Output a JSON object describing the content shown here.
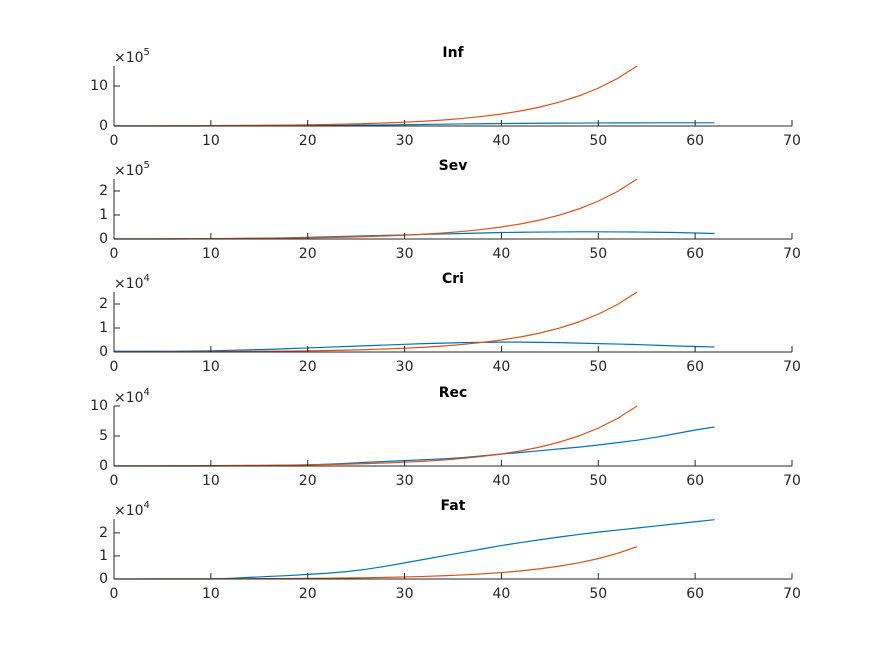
{
  "chart_data": [
    {
      "type": "line",
      "title": "Inf",
      "y_multiplier": "×10",
      "y_exponent": "5",
      "x": [
        0,
        2,
        4,
        6,
        8,
        10,
        12,
        14,
        16,
        18,
        20,
        22,
        24,
        26,
        28,
        30,
        32,
        34,
        36,
        38,
        40,
        42,
        44,
        46,
        48,
        50,
        52,
        54,
        56,
        58,
        60,
        62
      ],
      "series": [
        {
          "color": "#0072BD",
          "values": [
            0,
            0,
            0,
            0,
            0,
            1000,
            2000,
            3000,
            5000,
            7000,
            10000,
            13000,
            17000,
            22000,
            27000,
            33000,
            39000,
            45000,
            51000,
            56000,
            61000,
            65000,
            69000,
            72000,
            74000,
            76000,
            78000,
            79000,
            80000,
            80000,
            80000,
            80000
          ]
        },
        {
          "color": "#D95319",
          "values": [
            3000,
            3750,
            4800,
            6000,
            7500,
            9450,
            12000,
            15000,
            19050,
            23850,
            30000,
            37800,
            47550,
            60000,
            75450,
            94950,
            119400,
            150450,
            189000,
            238500,
            300000,
            378000,
            475500,
            598500,
            753000,
            946500,
            1191000,
            1500000,
            null,
            null,
            null,
            null
          ]
        }
      ],
      "xlim": [
        0,
        70
      ],
      "xticks": [
        0,
        10,
        20,
        30,
        40,
        50,
        60,
        70
      ],
      "ylim": [
        0,
        1500000
      ],
      "yticks": [
        0,
        {
          "value": 1000000,
          "label": "10"
        }
      ]
    },
    {
      "type": "line",
      "title": "Sev",
      "y_multiplier": "×10",
      "y_exponent": "5",
      "x": [
        0,
        2,
        4,
        6,
        8,
        10,
        12,
        14,
        16,
        18,
        20,
        22,
        24,
        26,
        28,
        30,
        32,
        34,
        36,
        38,
        40,
        42,
        44,
        46,
        48,
        50,
        52,
        54,
        56,
        58,
        60,
        62
      ],
      "series": [
        {
          "color": "#0072BD",
          "values": [
            0,
            0,
            0,
            0,
            500,
            1000,
            1500,
            2500,
            3500,
            5000,
            7000,
            9000,
            11000,
            13000,
            15000,
            17000,
            19000,
            21000,
            23000,
            25000,
            27000,
            28000,
            29000,
            29500,
            30000,
            30000,
            29500,
            29000,
            28000,
            27000,
            25000,
            23000
          ]
        },
        {
          "color": "#D95319",
          "values": [
            500,
            625,
            800,
            1000,
            1250,
            1575,
            2000,
            2500,
            3175,
            3975,
            5000,
            6300,
            7925,
            10000,
            12575,
            15825,
            19900,
            25075,
            31500,
            39750,
            50000,
            63000,
            79250,
            99750,
            125500,
            157750,
            198500,
            250000,
            null,
            null,
            null,
            null
          ]
        }
      ],
      "xlim": [
        0,
        70
      ],
      "xticks": [
        0,
        10,
        20,
        30,
        40,
        50,
        60,
        70
      ],
      "ylim": [
        0,
        250000
      ],
      "yticks": [
        0,
        {
          "value": 100000,
          "label": "1"
        },
        {
          "value": 200000,
          "label": "2"
        }
      ]
    },
    {
      "type": "line",
      "title": "Cri",
      "y_multiplier": "×10",
      "y_exponent": "4",
      "x": [
        0,
        2,
        4,
        6,
        8,
        10,
        12,
        14,
        16,
        18,
        20,
        22,
        24,
        26,
        28,
        30,
        32,
        34,
        36,
        38,
        40,
        42,
        44,
        46,
        48,
        50,
        52,
        54,
        56,
        58,
        60,
        62
      ],
      "series": [
        {
          "color": "#0072BD",
          "values": [
            300,
            300,
            300,
            300,
            400,
            500,
            700,
            900,
            1100,
            1400,
            1700,
            2000,
            2300,
            2600,
            2900,
            3200,
            3500,
            3700,
            3900,
            4000,
            4100,
            4100,
            4000,
            3900,
            3700,
            3500,
            3300,
            3100,
            2800,
            2500,
            2300,
            2100
          ]
        },
        {
          "color": "#D95319",
          "values": [
            50,
            63,
            80,
            100,
            125,
            158,
            200,
            250,
            318,
            398,
            500,
            630,
            793,
            1000,
            1258,
            1583,
            1990,
            2508,
            3150,
            3975,
            5000,
            6300,
            7925,
            9975,
            12550,
            15775,
            19850,
            25000,
            null,
            null,
            null,
            null
          ]
        }
      ],
      "xlim": [
        0,
        70
      ],
      "xticks": [
        0,
        10,
        20,
        30,
        40,
        50,
        60,
        70
      ],
      "ylim": [
        0,
        25000
      ],
      "yticks": [
        0,
        {
          "value": 10000,
          "label": "1"
        },
        {
          "value": 20000,
          "label": "2"
        }
      ]
    },
    {
      "type": "line",
      "title": "Rec",
      "y_multiplier": "×10",
      "y_exponent": "4",
      "x": [
        0,
        2,
        4,
        6,
        8,
        10,
        12,
        14,
        16,
        18,
        20,
        22,
        24,
        26,
        28,
        30,
        32,
        34,
        36,
        38,
        40,
        42,
        44,
        46,
        48,
        50,
        52,
        54,
        56,
        58,
        60,
        62
      ],
      "series": [
        {
          "color": "#0072BD",
          "values": [
            0,
            0,
            0,
            0,
            0,
            0,
            100,
            300,
            600,
            1000,
            2000,
            3000,
            4500,
            6000,
            7500,
            9000,
            10500,
            12000,
            14000,
            17000,
            20000,
            22500,
            25500,
            28500,
            31500,
            35000,
            39000,
            43000,
            48000,
            54000,
            60000,
            65000
          ]
        },
        {
          "color": "#D95319",
          "values": [
            200,
            250,
            320,
            400,
            500,
            630,
            800,
            1000,
            1270,
            1590,
            2000,
            2520,
            3170,
            4000,
            5030,
            6330,
            7960,
            10030,
            12600,
            15900,
            20000,
            25200,
            31700,
            39900,
            50200,
            63100,
            79400,
            100000,
            null,
            null,
            null,
            null
          ]
        }
      ],
      "xlim": [
        0,
        70
      ],
      "xticks": [
        0,
        10,
        20,
        30,
        40,
        50,
        60,
        70
      ],
      "ylim": [
        0,
        100000
      ],
      "yticks": [
        0,
        {
          "value": 50000,
          "label": "5"
        },
        {
          "value": 100000,
          "label": "10"
        }
      ]
    },
    {
      "type": "line",
      "title": "Fat",
      "y_multiplier": "×10",
      "y_exponent": "4",
      "x": [
        0,
        2,
        4,
        6,
        8,
        10,
        12,
        14,
        16,
        18,
        20,
        22,
        24,
        26,
        28,
        30,
        32,
        34,
        36,
        38,
        40,
        42,
        44,
        46,
        48,
        50,
        52,
        54,
        56,
        58,
        60,
        62
      ],
      "series": [
        {
          "color": "#0072BD",
          "values": [
            0,
            0,
            0,
            0,
            0,
            0,
            300,
            700,
            1100,
            1500,
            2000,
            2500,
            3200,
            4200,
            5500,
            7000,
            8500,
            10000,
            11500,
            13000,
            14500,
            15800,
            17000,
            18200,
            19300,
            20300,
            21200,
            22100,
            23000,
            23900,
            24800,
            25700
          ]
        },
        {
          "color": "#D95319",
          "values": [
            28,
            35,
            45,
            56,
            70,
            88,
            112,
            140,
            178,
            223,
            280,
            353,
            444,
            560,
            704,
            886,
            1114,
            1404,
            1764,
            2226,
            2800,
            3528,
            4438,
            5586,
            7028,
            8834,
            11116,
            14000,
            null,
            null,
            null,
            null
          ]
        }
      ],
      "xlim": [
        0,
        70
      ],
      "xticks": [
        0,
        10,
        20,
        30,
        40,
        50,
        60,
        70
      ],
      "ylim": [
        0,
        26000
      ],
      "yticks": [
        0,
        {
          "value": 10000,
          "label": "1"
        },
        {
          "value": 20000,
          "label": "2"
        }
      ]
    }
  ]
}
